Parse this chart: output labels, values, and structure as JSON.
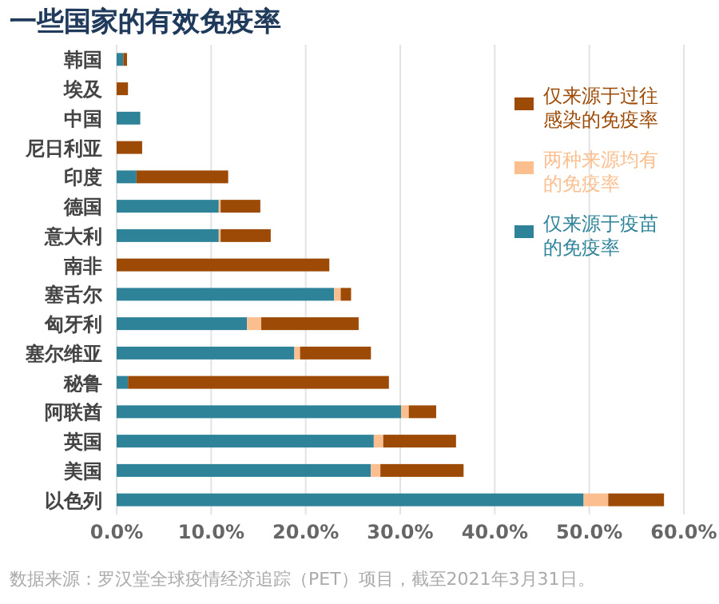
{
  "chart_data": {
    "type": "bar",
    "orientation": "horizontal",
    "stacked": true,
    "title": "一些国家的有效免疫率",
    "categories": [
      "韩国",
      "埃及",
      "中国",
      "尼日利亚",
      "印度",
      "德国",
      "意大利",
      "南非",
      "塞舌尔",
      "匈牙利",
      "塞尔维亚",
      "秘鲁",
      "阿联酋",
      "英国",
      "美国",
      "以色列"
    ],
    "series": [
      {
        "name": "仅来源于疫苗的免疫率",
        "color": "#2e8399",
        "values": [
          0.7,
          0,
          2.5,
          0,
          2.1,
          10.8,
          10.8,
          0,
          23.0,
          13.8,
          18.8,
          1.2,
          30.1,
          27.2,
          26.9,
          49.4
        ]
      },
      {
        "name": "两种来源均有的免疫率",
        "color": "#fbbf8f",
        "values": [
          0,
          0,
          0,
          0,
          0,
          0.2,
          0.2,
          0,
          0.7,
          1.5,
          0.6,
          0,
          0.8,
          1.0,
          1.0,
          2.6
        ]
      },
      {
        "name": "仅来源于过往感染的免疫率",
        "color": "#9c4a06",
        "values": [
          0.4,
          1.2,
          0,
          2.7,
          9.7,
          4.2,
          5.3,
          22.5,
          1.1,
          10.3,
          7.5,
          27.6,
          2.9,
          7.7,
          8.8,
          5.9
        ]
      }
    ],
    "xlim": [
      0,
      60
    ],
    "xticks": [
      {
        "value": 0,
        "label": "0.0%"
      },
      {
        "value": 10,
        "label": "10.0%"
      },
      {
        "value": 20,
        "label": "20.0%"
      },
      {
        "value": 30,
        "label": "30.0%"
      },
      {
        "value": 40,
        "label": "40.0%"
      },
      {
        "value": 50,
        "label": "50.0%"
      },
      {
        "value": 60,
        "label": "60.0%"
      }
    ],
    "grid": "x",
    "legend": "right",
    "annotations": [
      "数据来源：罗汉堂全球疫情经济追踪（PET）项目，截至2021年3月31日。"
    ]
  }
}
